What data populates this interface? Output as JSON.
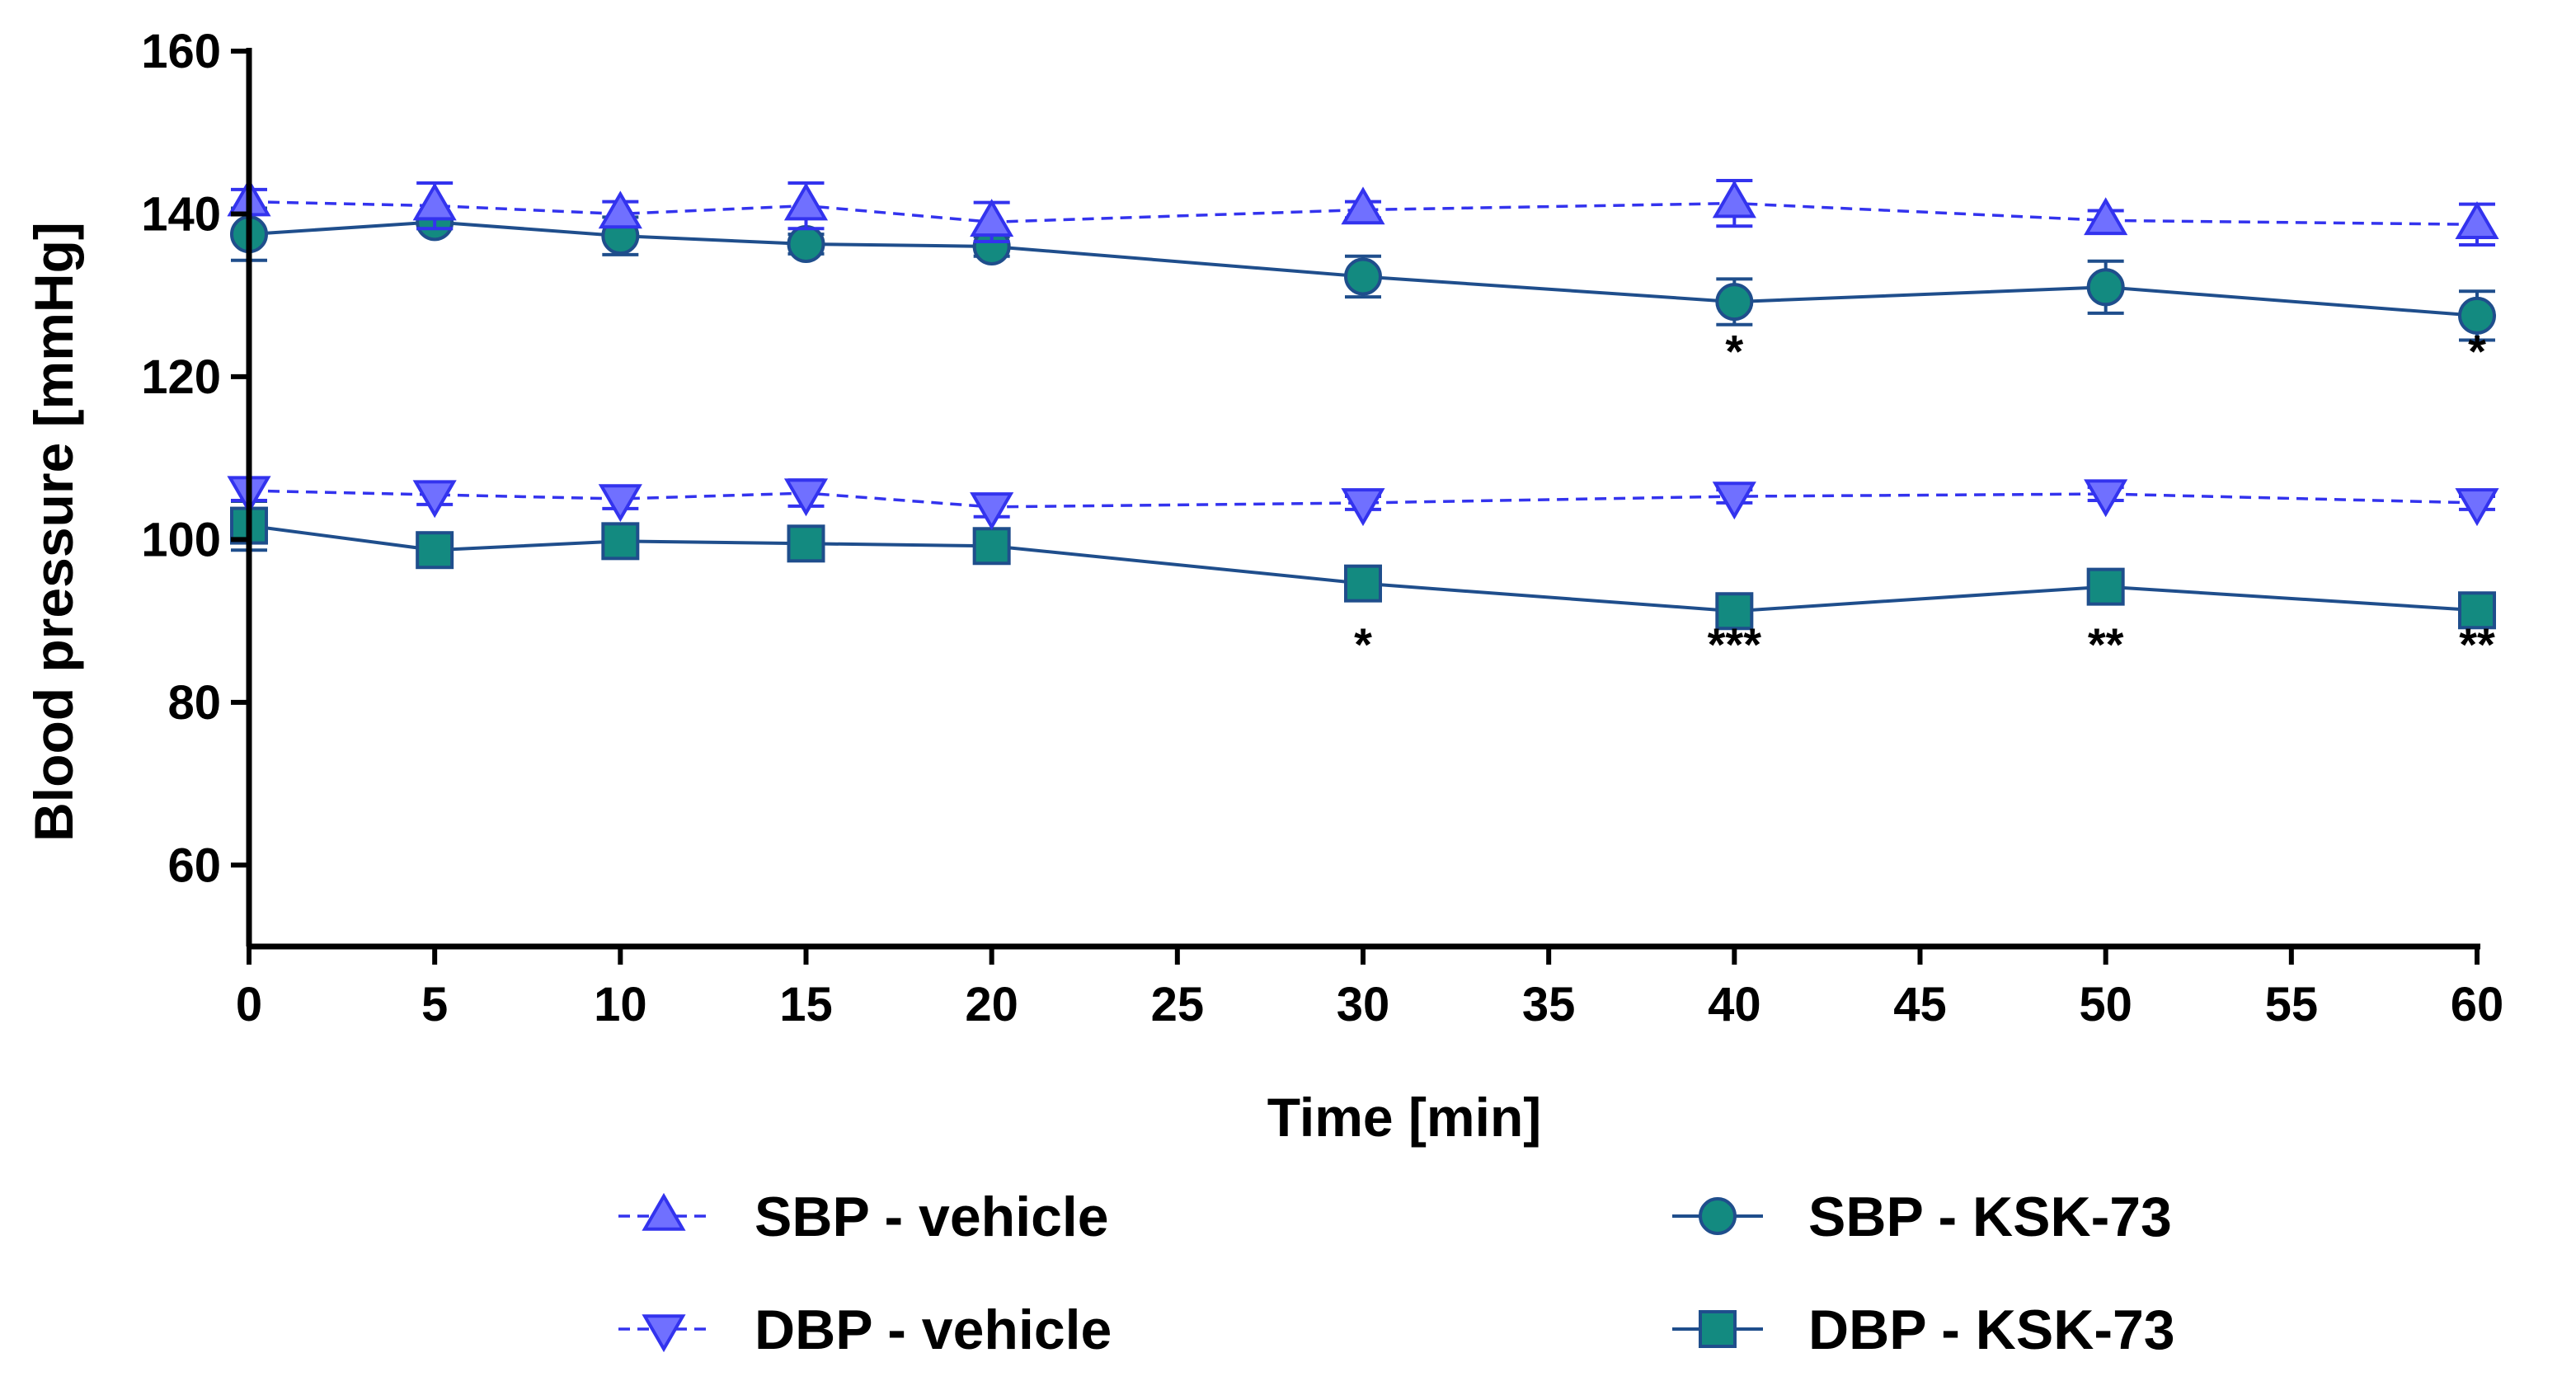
{
  "chart_data": {
    "type": "line",
    "xlabel": "Time [min]",
    "ylabel": "Blood pressure [mmHg]",
    "xlim": [
      0,
      60
    ],
    "ylim": [
      50,
      160
    ],
    "xticks": [
      0,
      5,
      10,
      15,
      20,
      25,
      30,
      35,
      40,
      45,
      50,
      55,
      60
    ],
    "yticks": [
      60,
      80,
      100,
      120,
      140,
      160
    ],
    "x": [
      0,
      5,
      10,
      15,
      20,
      30,
      40,
      50,
      60
    ],
    "grid": false,
    "legend_position": "bottom",
    "colors": {
      "vehicle": "#3333ee",
      "vehicle_fill": "#7070ff",
      "ksk": "#1f4e8c",
      "ksk_fill": "#138a80"
    },
    "series": [
      {
        "name": "SBP - vehicle",
        "marker": "triangle-up",
        "style": "dashed",
        "values": [
          141.5,
          141,
          140,
          141,
          139,
          140.5,
          141.3,
          139.2,
          138.7
        ],
        "errors": [
          1.5,
          2.8,
          1.5,
          2.8,
          2.4,
          1.0,
          2.8,
          1.2,
          2.5
        ]
      },
      {
        "name": "DBP - vehicle",
        "marker": "triangle-down",
        "style": "dashed",
        "values": [
          106,
          105.5,
          105,
          105.7,
          104,
          104.5,
          105.3,
          105.6,
          104.5
        ],
        "errors": [
          1.2,
          1.2,
          1.2,
          1.6,
          1.2,
          0.8,
          0.8,
          0.8,
          0.8
        ]
      },
      {
        "name": "SBP - KSK-73",
        "marker": "circle",
        "style": "solid",
        "values": [
          137.5,
          139,
          137.3,
          136.3,
          136,
          132.3,
          129.2,
          131,
          127.5
        ],
        "errors": [
          3.2,
          0.8,
          2.3,
          1.2,
          1.2,
          2.5,
          2.8,
          3.2,
          3.0
        ]
      },
      {
        "name": "DBP - KSK-73",
        "marker": "square",
        "style": "solid",
        "values": [
          101.7,
          98.7,
          99.8,
          99.5,
          99.2,
          94.6,
          91.2,
          94.2,
          91.3
        ],
        "errors": [
          3.0,
          1.0,
          1.0,
          1.0,
          1.0,
          1.0,
          1.0,
          1.0,
          1.0
        ]
      }
    ],
    "annotations": [
      {
        "x": 40,
        "y": 124,
        "text": "*"
      },
      {
        "x": 60,
        "y": 124,
        "text": "*"
      },
      {
        "x": 30,
        "y": 88,
        "text": "*"
      },
      {
        "x": 40,
        "y": 88,
        "text": "***"
      },
      {
        "x": 50,
        "y": 88,
        "text": "**"
      },
      {
        "x": 60,
        "y": 88,
        "text": "**"
      }
    ]
  }
}
